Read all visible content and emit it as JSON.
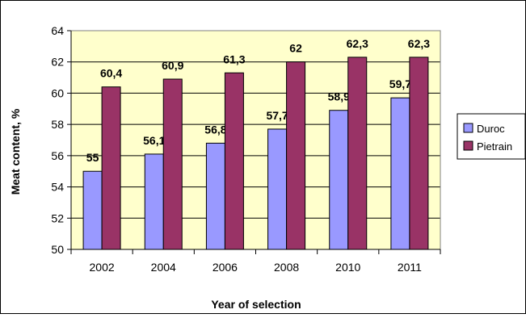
{
  "chart_data": {
    "type": "bar",
    "xlabel": "Year of selection",
    "ylabel": "Meat content, %",
    "categories": [
      "2002",
      "2004",
      "2006",
      "2008",
      "2010",
      "2011"
    ],
    "ylim": [
      50,
      64
    ],
    "yticks": [
      "50",
      "52",
      "54",
      "56",
      "58",
      "60",
      "62",
      "64"
    ],
    "grid": true,
    "legend_position": "right",
    "series": [
      {
        "name": "Duroc",
        "values": [
          55,
          56.1,
          56.8,
          57.7,
          58.9,
          59.7
        ],
        "labels": [
          "55",
          "56,1",
          "56,8",
          "57,7",
          "58,9",
          "59,7"
        ],
        "color": "#9999ff"
      },
      {
        "name": "Pietrain",
        "values": [
          60.4,
          60.9,
          61.3,
          62,
          62.3,
          62.3
        ],
        "labels": [
          "60,4",
          "60,9",
          "61,3",
          "62",
          "62,3",
          "62,3"
        ],
        "color": "#993366"
      }
    ],
    "plot_background": "#ffffcc"
  }
}
